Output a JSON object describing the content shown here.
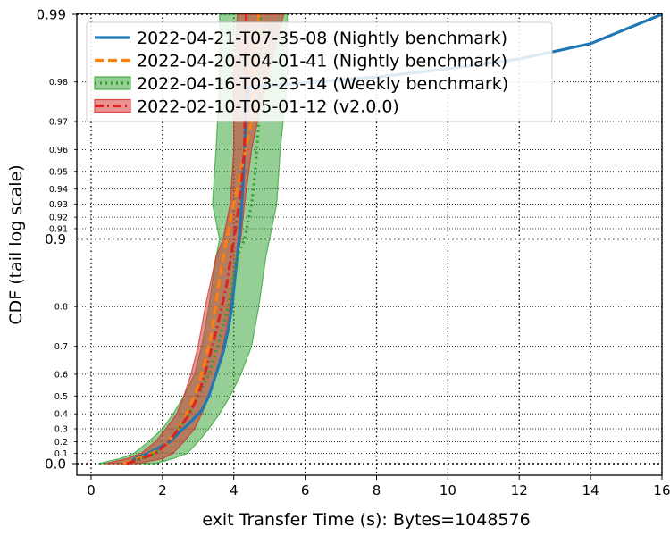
{
  "chart_data": {
    "type": "line",
    "title": "",
    "xlabel": "exit Transfer Time (s): Bytes=1048576",
    "ylabel": "CDF (tail log scale)",
    "xlim": [
      -0.4,
      16
    ],
    "x_ticks": [
      0,
      2,
      4,
      6,
      8,
      10,
      12,
      14,
      16
    ],
    "y_scale": "tail-log",
    "y_ticks_major": [
      0.0,
      0.9,
      0.99
    ],
    "y_tick_labels_major": [
      "0.0",
      "0.9",
      "0.99"
    ],
    "y_ticks_minor": [
      0.1,
      0.2,
      0.3,
      0.4,
      0.5,
      0.6,
      0.7,
      0.8,
      0.91,
      0.92,
      0.93,
      0.94,
      0.95,
      0.96,
      0.97,
      0.98
    ],
    "y_tick_labels_minor": [
      "0.1",
      "0.2",
      "0.3",
      "0.4",
      "0.5",
      "0.6",
      "0.7",
      "0.8",
      "0.91",
      "0.92",
      "0.93",
      "0.94",
      "0.95",
      "0.96",
      "0.97",
      "0.98"
    ],
    "grid": true,
    "legend_position": "top-left",
    "series": [
      {
        "name": "2022-04-21-T07-35-08 (Nightly benchmark)",
        "color": "#1f77b4",
        "style": "solid",
        "points": [
          [
            0.9,
            0.0
          ],
          [
            1.1,
            0.02
          ],
          [
            1.3,
            0.06
          ],
          [
            1.6,
            0.1
          ],
          [
            1.9,
            0.15
          ],
          [
            2.2,
            0.2
          ],
          [
            2.5,
            0.28
          ],
          [
            2.8,
            0.35
          ],
          [
            3.1,
            0.42
          ],
          [
            3.3,
            0.5
          ],
          [
            3.5,
            0.6
          ],
          [
            3.7,
            0.68
          ],
          [
            3.85,
            0.75
          ],
          [
            3.95,
            0.8
          ],
          [
            4.05,
            0.86
          ],
          [
            4.15,
            0.9
          ],
          [
            4.2,
            0.92
          ],
          [
            4.25,
            0.94
          ],
          [
            4.3,
            0.96
          ],
          [
            4.35,
            0.975
          ],
          [
            4.4,
            0.979
          ],
          [
            5.5,
            0.9795
          ],
          [
            8.0,
            0.981
          ],
          [
            10.0,
            0.9825
          ],
          [
            12.0,
            0.9842
          ],
          [
            14.0,
            0.9865
          ],
          [
            16.0,
            0.99
          ]
        ]
      },
      {
        "name": "2022-04-20-T04-01-41 (Nightly benchmark)",
        "color": "#ff7f0e",
        "style": "dashed",
        "points": [
          [
            0.9,
            0.0
          ],
          [
            1.3,
            0.05
          ],
          [
            1.7,
            0.1
          ],
          [
            2.0,
            0.15
          ],
          [
            2.3,
            0.25
          ],
          [
            2.5,
            0.32
          ],
          [
            2.8,
            0.45
          ],
          [
            3.0,
            0.55
          ],
          [
            3.2,
            0.65
          ],
          [
            3.4,
            0.75
          ],
          [
            3.6,
            0.85
          ],
          [
            3.8,
            0.9
          ],
          [
            4.0,
            0.93
          ],
          [
            4.2,
            0.95
          ],
          [
            4.5,
            0.97
          ],
          [
            4.7,
            0.99
          ]
        ]
      },
      {
        "name": "2022-04-16-T03-23-14 (Weekly benchmark)",
        "color": "#2ca02c",
        "style": "dotted",
        "points": [
          [
            1.0,
            0.0
          ],
          [
            1.4,
            0.05
          ],
          [
            1.8,
            0.1
          ],
          [
            2.1,
            0.18
          ],
          [
            2.4,
            0.28
          ],
          [
            2.7,
            0.38
          ],
          [
            3.0,
            0.5
          ],
          [
            3.3,
            0.6
          ],
          [
            3.6,
            0.72
          ],
          [
            3.85,
            0.8
          ],
          [
            4.1,
            0.88
          ],
          [
            4.3,
            0.9
          ],
          [
            4.5,
            0.93
          ],
          [
            4.6,
            0.95
          ],
          [
            4.7,
            0.97
          ],
          [
            4.75,
            0.99
          ]
        ],
        "band": {
          "x_low": [
            [
              0.2,
              0.0
            ],
            [
              0.8,
              0.05
            ],
            [
              1.2,
              0.1
            ],
            [
              1.6,
              0.2
            ],
            [
              2.0,
              0.3
            ],
            [
              2.3,
              0.4
            ],
            [
              2.6,
              0.5
            ],
            [
              2.9,
              0.6
            ],
            [
              3.1,
              0.7
            ],
            [
              3.3,
              0.8
            ],
            [
              3.5,
              0.88
            ],
            [
              3.6,
              0.9
            ],
            [
              3.4,
              0.93
            ],
            [
              3.5,
              0.96
            ],
            [
              3.6,
              0.98
            ],
            [
              3.6,
              0.99
            ]
          ],
          "x_high": [
            [
              1.8,
              0.0
            ],
            [
              2.3,
              0.05
            ],
            [
              2.7,
              0.1
            ],
            [
              3.0,
              0.2
            ],
            [
              3.3,
              0.3
            ],
            [
              3.6,
              0.4
            ],
            [
              3.9,
              0.5
            ],
            [
              4.2,
              0.6
            ],
            [
              4.5,
              0.7
            ],
            [
              4.7,
              0.8
            ],
            [
              4.9,
              0.88
            ],
            [
              5.0,
              0.9
            ],
            [
              5.2,
              0.93
            ],
            [
              5.3,
              0.96
            ],
            [
              5.5,
              0.98
            ],
            [
              5.5,
              0.99
            ]
          ]
        }
      },
      {
        "name": "2022-02-10-T05-01-12 (v2.0.0)",
        "color": "#d62728",
        "style": "dashdot",
        "points": [
          [
            1.0,
            0.0
          ],
          [
            1.4,
            0.05
          ],
          [
            1.8,
            0.1
          ],
          [
            2.1,
            0.18
          ],
          [
            2.4,
            0.28
          ],
          [
            2.7,
            0.38
          ],
          [
            2.95,
            0.48
          ],
          [
            3.15,
            0.58
          ],
          [
            3.35,
            0.68
          ],
          [
            3.55,
            0.76
          ],
          [
            3.8,
            0.84
          ],
          [
            4.0,
            0.9
          ],
          [
            4.1,
            0.92
          ],
          [
            4.2,
            0.94
          ],
          [
            4.3,
            0.96
          ],
          [
            4.35,
            0.99
          ]
        ],
        "band": {
          "x_low": [
            [
              0.4,
              0.0
            ],
            [
              1.0,
              0.05
            ],
            [
              1.4,
              0.1
            ],
            [
              1.8,
              0.2
            ],
            [
              2.1,
              0.3
            ],
            [
              2.4,
              0.4
            ],
            [
              2.6,
              0.5
            ],
            [
              2.8,
              0.6
            ],
            [
              3.0,
              0.7
            ],
            [
              3.2,
              0.8
            ],
            [
              3.5,
              0.88
            ],
            [
              3.7,
              0.9
            ],
            [
              3.9,
              0.93
            ],
            [
              4.0,
              0.96
            ],
            [
              4.0,
              0.98
            ],
            [
              4.1,
              0.99
            ]
          ],
          "x_high": [
            [
              1.3,
              0.0
            ],
            [
              2.0,
              0.05
            ],
            [
              2.3,
              0.1
            ],
            [
              2.6,
              0.2
            ],
            [
              2.9,
              0.3
            ],
            [
              3.1,
              0.4
            ],
            [
              3.3,
              0.5
            ],
            [
              3.5,
              0.6
            ],
            [
              3.7,
              0.7
            ],
            [
              3.9,
              0.8
            ],
            [
              4.1,
              0.88
            ],
            [
              4.2,
              0.9
            ],
            [
              4.3,
              0.93
            ],
            [
              4.5,
              0.96
            ],
            [
              4.9,
              0.98
            ],
            [
              5.4,
              0.99
            ]
          ]
        }
      }
    ]
  }
}
